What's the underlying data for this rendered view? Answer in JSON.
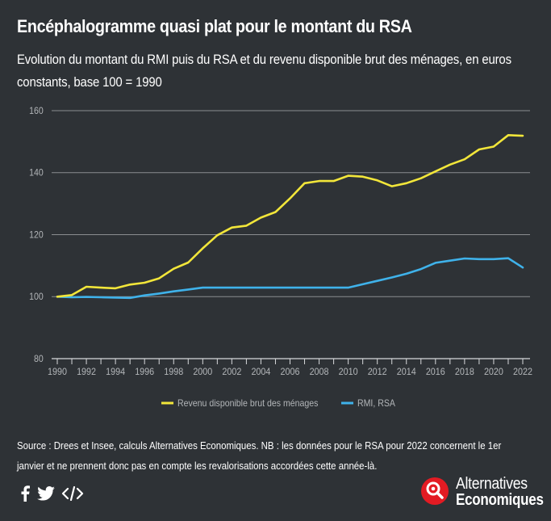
{
  "title": "Encéphalogramme quasi plat pour le montant du RSA",
  "subtitle": "Evolution du montant du RMI puis du RSA et du revenu disponible brut des ménages, en euros constants, base 100 = 1990",
  "source": "Source : Drees et Insee, calculs Alternatives Economiques. NB : les données pour le RSA pour 2022 concernent le 1er janvier et ne prennent donc pas en compte les revalorisations accordées cette année-là.",
  "logo": {
    "line1": "Alternatives",
    "line2": "Economiques"
  },
  "social_icons": [
    "facebook-icon",
    "twitter-icon",
    "embed-code-icon"
  ],
  "colors": {
    "background": "#2e3236",
    "revenu": "#f2e63a",
    "rmi": "#3fb2ea",
    "logo_red": "#e31b23"
  },
  "chart_data": {
    "type": "line",
    "title": "",
    "xlabel": "",
    "ylabel": "",
    "ylim": [
      80,
      160
    ],
    "yticks": [
      80,
      100,
      120,
      140,
      160
    ],
    "xlim": [
      1990,
      2022
    ],
    "xticks": [
      1990,
      1992,
      1994,
      1996,
      1998,
      2000,
      2002,
      2004,
      2006,
      2008,
      2010,
      2012,
      2014,
      2016,
      2018,
      2020,
      2022
    ],
    "grid": true,
    "legend_position": "bottom",
    "x": [
      1990,
      1991,
      1992,
      1993,
      1994,
      1995,
      1996,
      1997,
      1998,
      1999,
      2000,
      2001,
      2002,
      2003,
      2004,
      2005,
      2006,
      2007,
      2008,
      2009,
      2010,
      2011,
      2012,
      2013,
      2014,
      2015,
      2016,
      2017,
      2018,
      2019,
      2020,
      2021,
      2022
    ],
    "series": [
      {
        "name": "Revenu disponible brut des ménages",
        "color": "#f2e63a",
        "values": [
          100,
          100.5,
          103.2,
          102.9,
          102.7,
          103.9,
          104.5,
          105.9,
          109,
          111,
          115.6,
          119.8,
          122.3,
          122.9,
          125.5,
          127.3,
          131.7,
          136.6,
          137.3,
          137.3,
          139,
          138.7,
          137.5,
          135.6,
          136.6,
          138.2,
          140.4,
          142.6,
          144.3,
          147.5,
          148.4,
          152.1,
          151.9
        ]
      },
      {
        "name": "RMI, RSA",
        "color": "#3fb2ea",
        "values": [
          100,
          99.8,
          99.9,
          99.8,
          99.7,
          99.6,
          100.4,
          101,
          101.7,
          102.3,
          102.9,
          102.9,
          102.9,
          102.9,
          102.9,
          102.9,
          102.9,
          102.9,
          102.9,
          102.9,
          102.9,
          104,
          105.1,
          106.2,
          107.4,
          108.9,
          110.9,
          111.6,
          112.3,
          112.1,
          112.1,
          112.4,
          109.4
        ]
      }
    ]
  }
}
